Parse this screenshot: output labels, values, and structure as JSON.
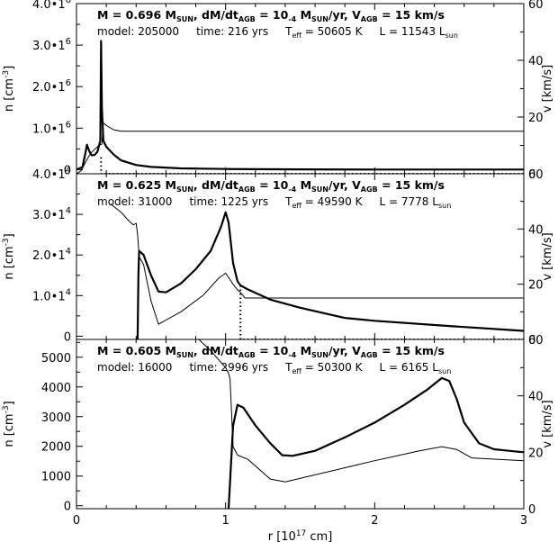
{
  "chart_data": {
    "type": "line",
    "panels": [
      {
        "title_parts": [
          "M = 0.696 M",
          "SUN",
          ", dM/dt",
          "AGB",
          " =  10",
          "-4",
          " M",
          "SUN",
          "/yr, V",
          "AGB",
          " = 15 km/s"
        ],
        "info_parts": [
          "model: 205000     time: 216 yrs     T",
          "eff",
          " = 50605 K     L = 11543 L",
          "sun"
        ],
        "left_ticks": [
          {
            "value": 0,
            "label": "0",
            "exp": ""
          },
          {
            "value": 1000000,
            "label": "1.0•1",
            "exp": "6"
          },
          {
            "value": 2000000,
            "label": "2.0•1",
            "exp": "6"
          },
          {
            "value": 3000000,
            "label": "3.0•1",
            "exp": "6"
          },
          {
            "value": 4000000,
            "label": "4.0•1",
            "exp": "6"
          }
        ],
        "right_ticks": [
          {
            "value": 0,
            "label": "0"
          },
          {
            "value": 20,
            "label": "20"
          },
          {
            "value": 40,
            "label": "40"
          },
          {
            "value": 60,
            "label": "60"
          }
        ],
        "left_ylabel_parts": [
          "n [cm",
          "-3",
          "]"
        ],
        "right_ylabel": "v [km/s]",
        "ylim_left": [
          -100000,
          4000000
        ],
        "ylim_right": [
          0,
          60
        ],
        "density": [
          [
            0.0,
            0
          ],
          [
            0.04,
            60000
          ],
          [
            0.06,
            400000
          ],
          [
            0.07,
            600000
          ],
          [
            0.085,
            450000
          ],
          [
            0.1,
            350000
          ],
          [
            0.12,
            350000
          ],
          [
            0.14,
            430000
          ],
          [
            0.16,
            700000
          ],
          [
            0.165,
            3100000
          ],
          [
            0.17,
            1500000
          ],
          [
            0.18,
            700000
          ],
          [
            0.2,
            550000
          ],
          [
            0.25,
            360000
          ],
          [
            0.3,
            220000
          ],
          [
            0.4,
            110000
          ],
          [
            0.5,
            65000
          ],
          [
            0.7,
            30000
          ],
          [
            1.0,
            15000
          ],
          [
            1.5,
            6000
          ],
          [
            2.0,
            3000
          ],
          [
            3.0,
            1000
          ]
        ],
        "velocity": [
          [
            0.0,
            0
          ],
          [
            0.03,
            1
          ],
          [
            0.06,
            4
          ],
          [
            0.08,
            6
          ],
          [
            0.1,
            7.5
          ],
          [
            0.12,
            8.5
          ],
          [
            0.15,
            10
          ],
          [
            0.17,
            10.5
          ],
          [
            0.18,
            18
          ],
          [
            0.2,
            17
          ],
          [
            0.25,
            15.5
          ],
          [
            0.3,
            15
          ],
          [
            0.5,
            15
          ],
          [
            3.0,
            15
          ]
        ],
        "dotted": [
          [
            0.165,
            300000
          ],
          [
            0.165,
            -100000
          ],
          [
            0.5,
            -100000
          ],
          [
            3.0,
            -100000
          ]
        ]
      },
      {
        "title_parts": [
          "M = 0.625 M",
          "SUN",
          ", dM/dt",
          "AGB",
          " =  10",
          "-4",
          " M",
          "SUN",
          "/yr, V",
          "AGB",
          " = 15 km/s"
        ],
        "info_parts": [
          "model: 31000     time: 1225 yrs     T",
          "eff",
          " = 49590 K     L = 7778 L",
          "sun"
        ],
        "left_ticks": [
          {
            "value": 0,
            "label": "0",
            "exp": ""
          },
          {
            "value": 10000,
            "label": "1.0•1",
            "exp": "4"
          },
          {
            "value": 20000,
            "label": "2.0•1",
            "exp": "4"
          },
          {
            "value": 30000,
            "label": "3.0•1",
            "exp": "4"
          },
          {
            "value": 40000,
            "label": "4.0•1",
            "exp": "4"
          }
        ],
        "right_ticks": [
          {
            "value": 0,
            "label": "0"
          },
          {
            "value": 20,
            "label": "20"
          },
          {
            "value": 40,
            "label": "40"
          },
          {
            "value": 60,
            "label": "60"
          }
        ],
        "left_ylabel_parts": [
          "n [cm",
          "-3",
          "]"
        ],
        "right_ylabel": "v [km/s]",
        "ylim_left": [
          -800,
          40000
        ],
        "ylim_right": [
          0,
          60
        ],
        "density": [
          [
            0.41,
            -800
          ],
          [
            0.415,
            15000
          ],
          [
            0.42,
            21000
          ],
          [
            0.45,
            20000
          ],
          [
            0.5,
            15000
          ],
          [
            0.55,
            11000
          ],
          [
            0.6,
            10800
          ],
          [
            0.7,
            13000
          ],
          [
            0.8,
            16500
          ],
          [
            0.9,
            21000
          ],
          [
            0.97,
            27000
          ],
          [
            1.0,
            30500
          ],
          [
            1.02,
            28000
          ],
          [
            1.05,
            18000
          ],
          [
            1.08,
            13500
          ],
          [
            1.1,
            12500
          ],
          [
            1.15,
            11500
          ],
          [
            1.3,
            9000
          ],
          [
            1.5,
            7000
          ],
          [
            1.8,
            4500
          ],
          [
            2.0,
            3800
          ],
          [
            2.5,
            2500
          ],
          [
            3.0,
            1300
          ]
        ],
        "velocity": [
          [
            0.23,
            49
          ],
          [
            0.3,
            46
          ],
          [
            0.35,
            43
          ],
          [
            0.38,
            41.5
          ],
          [
            0.4,
            42
          ],
          [
            0.41,
            38
          ],
          [
            0.42,
            30
          ],
          [
            0.45,
            27
          ],
          [
            0.5,
            14
          ],
          [
            0.55,
            5.5
          ],
          [
            0.6,
            7
          ],
          [
            0.7,
            10
          ],
          [
            0.85,
            16
          ],
          [
            0.95,
            22
          ],
          [
            1.0,
            24
          ],
          [
            1.05,
            20
          ],
          [
            1.08,
            18
          ],
          [
            1.1,
            17
          ],
          [
            1.13,
            15
          ],
          [
            1.2,
            15
          ],
          [
            3.0,
            15
          ]
        ],
        "dotted": [
          [
            1.1,
            12500
          ],
          [
            1.1,
            -800
          ],
          [
            3.0,
            -800
          ]
        ]
      },
      {
        "title_parts": [
          "M = 0.605 M",
          "SUN",
          ", dM/dt",
          "AGB",
          " =  10",
          "-4",
          " M",
          "SUN",
          "/yr, V",
          "AGB",
          " = 15 km/s"
        ],
        "info_parts": [
          "model: 16000     time: 2996 yrs     T",
          "eff",
          " = 50300 K     L = 6165 L",
          "sun"
        ],
        "left_ticks": [
          {
            "value": 0,
            "label": "0",
            "exp": ""
          },
          {
            "value": 1000,
            "label": "1000",
            "exp": ""
          },
          {
            "value": 2000,
            "label": "2000",
            "exp": ""
          },
          {
            "value": 3000,
            "label": "3000",
            "exp": ""
          },
          {
            "value": 4000,
            "label": "4000",
            "exp": ""
          },
          {
            "value": 5000,
            "label": "5000",
            "exp": ""
          }
        ],
        "right_ticks": [
          {
            "value": 0,
            "label": "0"
          },
          {
            "value": 20,
            "label": "20"
          },
          {
            "value": 40,
            "label": "40"
          },
          {
            "value": 60,
            "label": "60"
          }
        ],
        "left_ylabel_parts": [
          "n [cm",
          "-3",
          "]"
        ],
        "right_ylabel": "v [km/s]",
        "ylim_left": [
          -100,
          5600
        ],
        "ylim_right": [
          0,
          60
        ],
        "density": [
          [
            1.02,
            -100
          ],
          [
            1.05,
            2700
          ],
          [
            1.08,
            3400
          ],
          [
            1.12,
            3300
          ],
          [
            1.2,
            2700
          ],
          [
            1.3,
            2100
          ],
          [
            1.38,
            1700
          ],
          [
            1.45,
            1680
          ],
          [
            1.6,
            1850
          ],
          [
            1.8,
            2300
          ],
          [
            2.0,
            2800
          ],
          [
            2.2,
            3400
          ],
          [
            2.35,
            3900
          ],
          [
            2.45,
            4300
          ],
          [
            2.5,
            4200
          ],
          [
            2.55,
            3600
          ],
          [
            2.6,
            2800
          ],
          [
            2.7,
            2100
          ],
          [
            2.8,
            1900
          ],
          [
            2.9,
            1850
          ],
          [
            3.0,
            1800
          ]
        ],
        "velocity": [
          [
            0.8,
            61
          ],
          [
            0.9,
            56
          ],
          [
            0.95,
            53
          ],
          [
            1.0,
            50
          ],
          [
            1.02,
            48
          ],
          [
            1.03,
            46
          ],
          [
            1.05,
            22
          ],
          [
            1.08,
            19
          ],
          [
            1.15,
            17.5
          ],
          [
            1.3,
            10.5
          ],
          [
            1.4,
            9.5
          ],
          [
            1.6,
            12
          ],
          [
            2.0,
            17
          ],
          [
            2.3,
            20.5
          ],
          [
            2.45,
            22
          ],
          [
            2.55,
            21
          ],
          [
            2.65,
            18
          ],
          [
            3.0,
            17
          ]
        ],
        "dotted": []
      }
    ],
    "x_ticks": [
      {
        "value": 0,
        "label": "0"
      },
      {
        "value": 1,
        "label": "1"
      },
      {
        "value": 2,
        "label": "2"
      },
      {
        "value": 3,
        "label": "3"
      }
    ],
    "xlabel_parts": [
      "r [10",
      "17",
      " cm]"
    ],
    "xlim": [
      0,
      3
    ],
    "series": [
      {
        "name": "",
        "role": "density",
        "style": "thick",
        "axis": "left",
        "color": "#000000"
      },
      {
        "name": "",
        "role": "velocity",
        "style": "thin",
        "axis": "right",
        "color": "#000000"
      },
      {
        "name": "",
        "role": "dotted",
        "style": "dotted",
        "axis": "left",
        "color": "#000000"
      }
    ]
  }
}
